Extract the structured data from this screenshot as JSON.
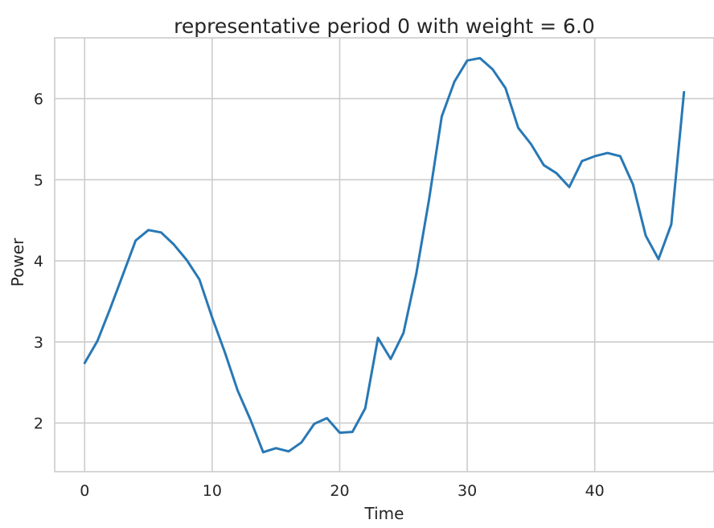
{
  "chart_data": {
    "type": "line",
    "title": "representative period 0 with weight = 6.0",
    "xlabel": "Time",
    "ylabel": "Power",
    "xlim": [
      -2.35,
      49.35
    ],
    "ylim": [
      1.4,
      6.75
    ],
    "xticks": [
      0,
      10,
      20,
      30,
      40
    ],
    "yticks": [
      2,
      3,
      4,
      5,
      6
    ],
    "grid": true,
    "series": [
      {
        "color": "#2878b5",
        "x": [
          0,
          1,
          2,
          3,
          4,
          5,
          6,
          7,
          8,
          9,
          10,
          11,
          12,
          13,
          14,
          15,
          16,
          17,
          18,
          19,
          20,
          21,
          22,
          23,
          24,
          25,
          26,
          27,
          28,
          29,
          30,
          31,
          32,
          33,
          34,
          35,
          36,
          37,
          38,
          39,
          40,
          41,
          42,
          43,
          44,
          45,
          46,
          47
        ],
        "y": [
          2.74,
          3.01,
          3.41,
          3.83,
          4.25,
          4.38,
          4.35,
          4.2,
          4.01,
          3.77,
          3.3,
          2.87,
          2.4,
          2.04,
          1.64,
          1.69,
          1.65,
          1.76,
          1.99,
          2.06,
          1.88,
          1.89,
          2.18,
          3.05,
          2.79,
          3.11,
          3.84,
          4.75,
          5.78,
          6.21,
          6.47,
          6.5,
          6.36,
          6.13,
          5.64,
          5.44,
          5.18,
          5.08,
          4.91,
          5.23,
          5.29,
          5.33,
          5.29,
          4.94,
          4.31,
          4.02,
          4.45,
          6.08
        ]
      }
    ]
  }
}
